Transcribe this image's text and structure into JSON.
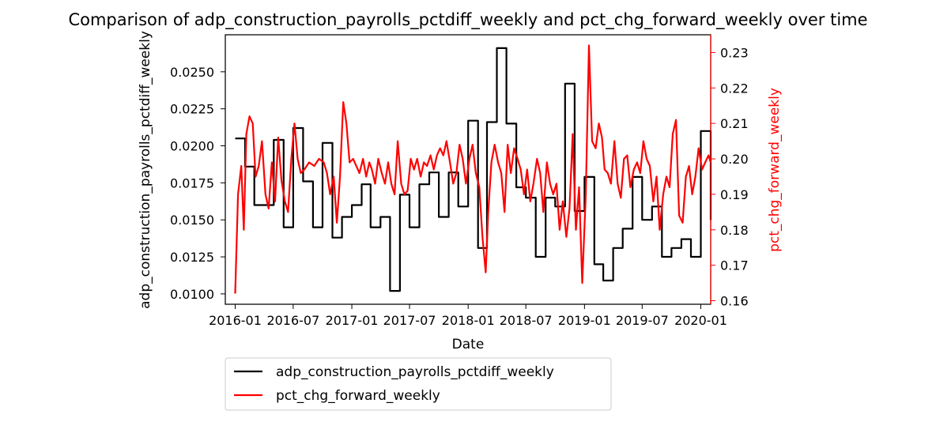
{
  "chart_data": {
    "type": "line",
    "title": "Comparison of adp_construction_payrolls_pctdiff_weekly and pct_chg_forward_weekly over time",
    "xlabel": "Date",
    "ylabel_left": "adp_construction_payrolls_pctdiff_weekly",
    "ylabel_right": "pct_chg_forward_weekly",
    "xlim": [
      "2015-12-01",
      "2020-02-01"
    ],
    "ylim_left": [
      0.0093,
      0.0275
    ],
    "ylim_right": [
      0.159,
      0.235
    ],
    "x_ticks": [
      "2016-01",
      "2016-07",
      "2017-01",
      "2017-07",
      "2018-01",
      "2018-07",
      "2019-01",
      "2019-07",
      "2020-01"
    ],
    "y_ticks_left": [
      "0.0100",
      "0.0125",
      "0.0150",
      "0.0175",
      "0.0200",
      "0.0225",
      "0.0250"
    ],
    "y_ticks_right": [
      "0.16",
      "0.17",
      "0.18",
      "0.19",
      "0.20",
      "0.21",
      "0.22",
      "0.23"
    ],
    "legend_position": "below",
    "grid": false,
    "series": [
      {
        "name": "adp_construction_payrolls_pctdiff_weekly",
        "axis": "left",
        "color": "#000000",
        "step": true,
        "points": [
          [
            "2016-01-01",
            0.0205
          ],
          [
            "2016-02-01",
            0.0186
          ],
          [
            "2016-03-01",
            0.016
          ],
          [
            "2016-04-01",
            0.016
          ],
          [
            "2016-05-01",
            0.0204
          ],
          [
            "2016-06-01",
            0.0145
          ],
          [
            "2016-07-01",
            0.0212
          ],
          [
            "2016-08-01",
            0.0176
          ],
          [
            "2016-09-01",
            0.0145
          ],
          [
            "2016-10-01",
            0.0202
          ],
          [
            "2016-11-01",
            0.0138
          ],
          [
            "2016-12-01",
            0.0152
          ],
          [
            "2017-01-01",
            0.016
          ],
          [
            "2017-02-01",
            0.0174
          ],
          [
            "2017-03-01",
            0.0145
          ],
          [
            "2017-04-01",
            0.0152
          ],
          [
            "2017-05-01",
            0.0102
          ],
          [
            "2017-06-01",
            0.0167
          ],
          [
            "2017-07-01",
            0.0145
          ],
          [
            "2017-08-01",
            0.0174
          ],
          [
            "2017-09-01",
            0.0182
          ],
          [
            "2017-10-01",
            0.0152
          ],
          [
            "2017-11-01",
            0.0182
          ],
          [
            "2017-12-01",
            0.0159
          ],
          [
            "2018-01-01",
            0.0217
          ],
          [
            "2018-02-01",
            0.0131
          ],
          [
            "2018-03-01",
            0.0216
          ],
          [
            "2018-04-01",
            0.0266
          ],
          [
            "2018-05-01",
            0.0215
          ],
          [
            "2018-06-01",
            0.0172
          ],
          [
            "2018-07-01",
            0.0165
          ],
          [
            "2018-08-01",
            0.0125
          ],
          [
            "2018-09-01",
            0.0165
          ],
          [
            "2018-10-01",
            0.0159
          ],
          [
            "2018-11-01",
            0.0242
          ],
          [
            "2018-12-01",
            0.0156
          ],
          [
            "2019-01-01",
            0.0179
          ],
          [
            "2019-02-01",
            0.012
          ],
          [
            "2019-03-01",
            0.0109
          ],
          [
            "2019-04-01",
            0.0131
          ],
          [
            "2019-05-01",
            0.0144
          ],
          [
            "2019-06-01",
            0.0179
          ],
          [
            "2019-07-01",
            0.015
          ],
          [
            "2019-08-01",
            0.0159
          ],
          [
            "2019-09-01",
            0.0125
          ],
          [
            "2019-10-01",
            0.0131
          ],
          [
            "2019-11-01",
            0.0137
          ],
          [
            "2019-12-01",
            0.0125
          ],
          [
            "2020-01-01",
            0.021
          ],
          [
            "2020-02-01",
            0.015
          ]
        ]
      },
      {
        "name": "pct_chg_forward_weekly",
        "axis": "right",
        "color": "#ff0000",
        "step": false,
        "points": [
          [
            "2016-01-01",
            0.162
          ],
          [
            "2016-01-10",
            0.19
          ],
          [
            "2016-01-20",
            0.198
          ],
          [
            "2016-01-28",
            0.18
          ],
          [
            "2016-02-05",
            0.207
          ],
          [
            "2016-02-15",
            0.212
          ],
          [
            "2016-02-25",
            0.21
          ],
          [
            "2016-03-05",
            0.195
          ],
          [
            "2016-03-15",
            0.198
          ],
          [
            "2016-03-25",
            0.205
          ],
          [
            "2016-04-05",
            0.19
          ],
          [
            "2016-04-15",
            0.186
          ],
          [
            "2016-04-25",
            0.199
          ],
          [
            "2016-05-05",
            0.188
          ],
          [
            "2016-05-15",
            0.206
          ],
          [
            "2016-05-25",
            0.194
          ],
          [
            "2016-06-05",
            0.188
          ],
          [
            "2016-06-15",
            0.185
          ],
          [
            "2016-06-25",
            0.2
          ],
          [
            "2016-07-05",
            0.21
          ],
          [
            "2016-07-15",
            0.2
          ],
          [
            "2016-07-25",
            0.196
          ],
          [
            "2016-08-05",
            0.197
          ],
          [
            "2016-08-20",
            0.199
          ],
          [
            "2016-09-05",
            0.198
          ],
          [
            "2016-09-20",
            0.2
          ],
          [
            "2016-10-05",
            0.199
          ],
          [
            "2016-10-15",
            0.196
          ],
          [
            "2016-10-25",
            0.19
          ],
          [
            "2016-11-05",
            0.195
          ],
          [
            "2016-11-15",
            0.182
          ],
          [
            "2016-11-25",
            0.195
          ],
          [
            "2016-12-05",
            0.216
          ],
          [
            "2016-12-15",
            0.21
          ],
          [
            "2016-12-25",
            0.199
          ],
          [
            "2017-01-05",
            0.2
          ],
          [
            "2017-01-15",
            0.198
          ],
          [
            "2017-01-25",
            0.196
          ],
          [
            "2017-02-05",
            0.2
          ],
          [
            "2017-02-15",
            0.195
          ],
          [
            "2017-02-25",
            0.199
          ],
          [
            "2017-03-05",
            0.197
          ],
          [
            "2017-03-15",
            0.193
          ],
          [
            "2017-03-25",
            0.2
          ],
          [
            "2017-04-05",
            0.196
          ],
          [
            "2017-04-15",
            0.193
          ],
          [
            "2017-04-25",
            0.199
          ],
          [
            "2017-05-05",
            0.193
          ],
          [
            "2017-05-15",
            0.19
          ],
          [
            "2017-05-25",
            0.205
          ],
          [
            "2017-06-05",
            0.193
          ],
          [
            "2017-06-15",
            0.19
          ],
          [
            "2017-06-25",
            0.191
          ],
          [
            "2017-07-05",
            0.2
          ],
          [
            "2017-07-15",
            0.197
          ],
          [
            "2017-07-25",
            0.2
          ],
          [
            "2017-08-05",
            0.195
          ],
          [
            "2017-08-15",
            0.199
          ],
          [
            "2017-08-25",
            0.198
          ],
          [
            "2017-09-05",
            0.201
          ],
          [
            "2017-09-15",
            0.197
          ],
          [
            "2017-09-25",
            0.201
          ],
          [
            "2017-10-05",
            0.203
          ],
          [
            "2017-10-15",
            0.201
          ],
          [
            "2017-10-25",
            0.205
          ],
          [
            "2017-11-05",
            0.199
          ],
          [
            "2017-11-15",
            0.193
          ],
          [
            "2017-11-25",
            0.196
          ],
          [
            "2017-12-05",
            0.204
          ],
          [
            "2017-12-15",
            0.2
          ],
          [
            "2017-12-25",
            0.193
          ],
          [
            "2018-01-05",
            0.2
          ],
          [
            "2018-01-15",
            0.204
          ],
          [
            "2018-01-25",
            0.196
          ],
          [
            "2018-02-05",
            0.192
          ],
          [
            "2018-02-15",
            0.178
          ],
          [
            "2018-02-25",
            0.168
          ],
          [
            "2018-03-05",
            0.185
          ],
          [
            "2018-03-15",
            0.199
          ],
          [
            "2018-03-25",
            0.204
          ],
          [
            "2018-04-05",
            0.199
          ],
          [
            "2018-04-15",
            0.196
          ],
          [
            "2018-04-25",
            0.185
          ],
          [
            "2018-05-05",
            0.204
          ],
          [
            "2018-05-15",
            0.196
          ],
          [
            "2018-05-25",
            0.203
          ],
          [
            "2018-06-05",
            0.2
          ],
          [
            "2018-06-15",
            0.197
          ],
          [
            "2018-06-25",
            0.19
          ],
          [
            "2018-07-05",
            0.197
          ],
          [
            "2018-07-15",
            0.188
          ],
          [
            "2018-07-25",
            0.193
          ],
          [
            "2018-08-05",
            0.2
          ],
          [
            "2018-08-15",
            0.196
          ],
          [
            "2018-08-25",
            0.185
          ],
          [
            "2018-09-05",
            0.199
          ],
          [
            "2018-09-15",
            0.193
          ],
          [
            "2018-09-25",
            0.19
          ],
          [
            "2018-10-05",
            0.193
          ],
          [
            "2018-10-15",
            0.18
          ],
          [
            "2018-10-25",
            0.188
          ],
          [
            "2018-11-05",
            0.178
          ],
          [
            "2018-11-15",
            0.186
          ],
          [
            "2018-11-25",
            0.207
          ],
          [
            "2018-12-05",
            0.18
          ],
          [
            "2018-12-15",
            0.192
          ],
          [
            "2018-12-25",
            0.165
          ],
          [
            "2019-01-05",
            0.19
          ],
          [
            "2019-01-15",
            0.232
          ],
          [
            "2019-01-25",
            0.205
          ],
          [
            "2019-02-05",
            0.203
          ],
          [
            "2019-02-15",
            0.21
          ],
          [
            "2019-02-25",
            0.206
          ],
          [
            "2019-03-05",
            0.197
          ],
          [
            "2019-03-15",
            0.196
          ],
          [
            "2019-03-25",
            0.193
          ],
          [
            "2019-04-05",
            0.205
          ],
          [
            "2019-04-15",
            0.193
          ],
          [
            "2019-04-25",
            0.189
          ],
          [
            "2019-05-05",
            0.2
          ],
          [
            "2019-05-15",
            0.201
          ],
          [
            "2019-05-25",
            0.192
          ],
          [
            "2019-06-05",
            0.197
          ],
          [
            "2019-06-15",
            0.199
          ],
          [
            "2019-06-25",
            0.196
          ],
          [
            "2019-07-05",
            0.205
          ],
          [
            "2019-07-15",
            0.2
          ],
          [
            "2019-07-25",
            0.198
          ],
          [
            "2019-08-05",
            0.188
          ],
          [
            "2019-08-15",
            0.195
          ],
          [
            "2019-08-25",
            0.18
          ],
          [
            "2019-09-05",
            0.19
          ],
          [
            "2019-09-15",
            0.195
          ],
          [
            "2019-09-25",
            0.192
          ],
          [
            "2019-10-05",
            0.207
          ],
          [
            "2019-10-15",
            0.211
          ],
          [
            "2019-10-25",
            0.184
          ],
          [
            "2019-11-05",
            0.182
          ],
          [
            "2019-11-15",
            0.195
          ],
          [
            "2019-11-25",
            0.198
          ],
          [
            "2019-12-05",
            0.19
          ],
          [
            "2019-12-15",
            0.195
          ],
          [
            "2019-12-25",
            0.203
          ],
          [
            "2020-01-05",
            0.197
          ],
          [
            "2020-01-15",
            0.199
          ],
          [
            "2020-01-25",
            0.201
          ],
          [
            "2020-02-01",
            0.199
          ]
        ]
      }
    ]
  }
}
